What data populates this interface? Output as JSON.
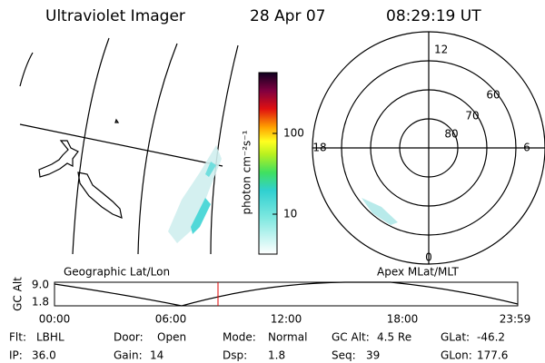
{
  "header": {
    "title": "Ultraviolet Imager",
    "date": "28 Apr 07",
    "time": "08:29:19 UT"
  },
  "colorbar": {
    "unit": "photon cm⁻²s⁻¹",
    "ticks": [
      "100",
      "10"
    ]
  },
  "polar": {
    "lat_labels": [
      "60",
      "70",
      "80"
    ],
    "mlt_labels": [
      "12",
      "18",
      "6",
      "0"
    ]
  },
  "timeline": {
    "left_label": "Geographic Lat/Lon",
    "right_label": "Apex MLat/MLT",
    "y_title": "GC Alt",
    "y_labels": [
      "9.0",
      "1.8"
    ],
    "x_labels": [
      "00:00",
      "06:00",
      "12:00",
      "18:00",
      "23:59"
    ]
  },
  "status": [
    [
      {
        "label": "Flt:",
        "value": "LBHL"
      },
      {
        "label": "Door:",
        "value": "Open"
      },
      {
        "label": "Mode:",
        "value": "Normal"
      },
      {
        "label": "GC Alt:",
        "value": "4.5 Re"
      },
      {
        "label": "GLat:",
        "value": "-46.2"
      }
    ],
    [
      {
        "label": "IP:",
        "value": "36.0"
      },
      {
        "label": "Gain:",
        "value": "14"
      },
      {
        "label": "Dsp:",
        "value": "1.8"
      },
      {
        "label": "Seq:",
        "value": "39"
      },
      {
        "label": "GLon:",
        "value": "177.6"
      }
    ]
  ]
}
